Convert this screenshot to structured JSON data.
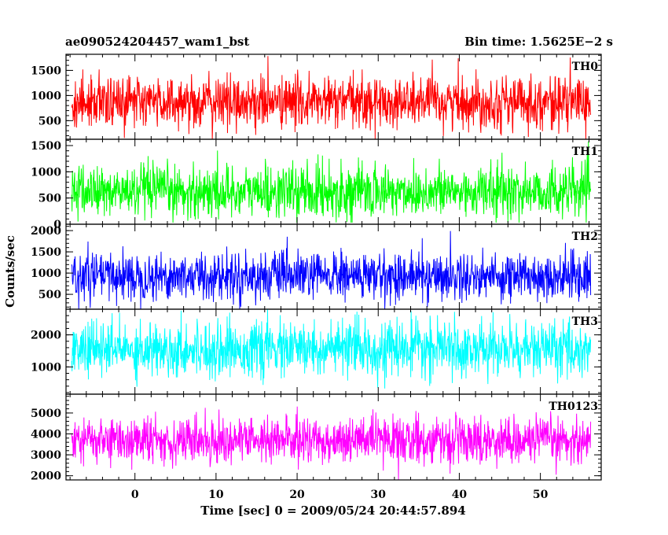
{
  "header": {
    "title": "ae090524204457_wam1_bst",
    "bin_time": "Bin time: 1.5625E−2 s"
  },
  "chart_data": {
    "type": "line",
    "xlabel": "Time [sec] 0 = 2009/05/24 20:44:57.894",
    "ylabel": "Counts/sec",
    "xlim": [
      -8.5,
      57.5
    ],
    "xticks": [
      0,
      10,
      20,
      30,
      40,
      50
    ],
    "x_range_data": [
      -7.8,
      56.2
    ],
    "grid": false,
    "panels": [
      {
        "label": "TH0",
        "color": "#ff0000",
        "ylim": [
          130,
          1820
        ],
        "yticks": [
          500,
          1000,
          1500
        ],
        "mean": 870,
        "spread": 260,
        "min": 130,
        "max": 1800
      },
      {
        "label": "TH1",
        "color": "#00ff00",
        "ylim": [
          0,
          1620
        ],
        "yticks": [
          0,
          500,
          1000,
          1500
        ],
        "mean": 620,
        "spread": 250,
        "min": 30,
        "max": 1620
      },
      {
        "label": "TH2",
        "color": "#0000ff",
        "ylim": [
          150,
          2150
        ],
        "yticks": [
          500,
          1000,
          1500,
          2000
        ],
        "mean": 930,
        "spread": 280,
        "min": 150,
        "max": 2100
      },
      {
        "label": "TH3",
        "color": "#00ffff",
        "ylim": [
          150,
          2800
        ],
        "yticks": [
          1000,
          2000
        ],
        "mean": 1550,
        "spread": 420,
        "min": 200,
        "max": 2800
      },
      {
        "label": "TH0123",
        "color": "#ff00ff",
        "ylim": [
          1800,
          5900
        ],
        "yticks": [
          2000,
          3000,
          4000,
          5000
        ],
        "mean": 3700,
        "spread": 550,
        "min": 1800,
        "max": 5900
      }
    ]
  }
}
